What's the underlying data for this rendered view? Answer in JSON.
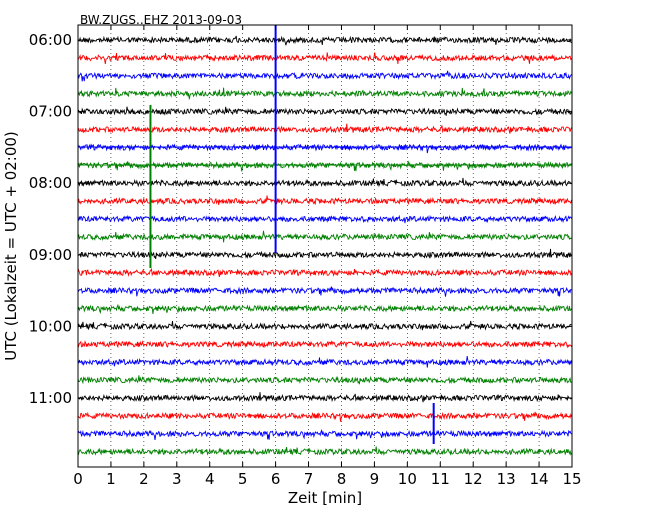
{
  "chart_data": {
    "type": "line",
    "title": "BW.ZUGS..EHZ 2013-09-03",
    "xlabel": "Zeit  [min]",
    "ylabel": "UTC (Lokalzeit = UTC + 02:00)",
    "xlim": [
      0,
      15
    ],
    "x_ticks": [
      "0",
      "1",
      "2",
      "3",
      "4",
      "5",
      "6",
      "7",
      "8",
      "9",
      "10",
      "11",
      "12",
      "13",
      "14",
      "15"
    ],
    "y_ticks": [
      "06:00",
      "07:00",
      "08:00",
      "09:00",
      "10:00",
      "11:00"
    ],
    "grid": {
      "x": "dotted",
      "y": "none"
    },
    "trace_colors": [
      "#000000",
      "#ff0000",
      "#0000ff",
      "#008000"
    ],
    "trace_rows": 24,
    "trace_minutes": 15,
    "events": [
      {
        "row": 5,
        "minute": 2.2,
        "color": "#008000"
      },
      {
        "row": 6,
        "minute": 6.0,
        "color": "#0000ff"
      },
      {
        "row": 22,
        "minute": 10.8,
        "color": "#0000ff"
      }
    ]
  }
}
